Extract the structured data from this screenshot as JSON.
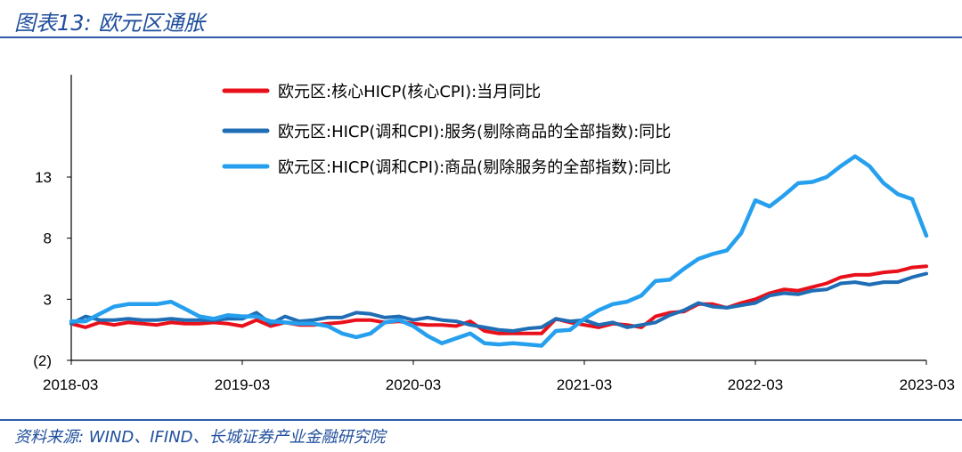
{
  "header": {
    "title": "图表13:  欧元区通胀"
  },
  "footer": {
    "source": "资料来源:  WIND、IFIND、长城证券产业金融研究院"
  },
  "chart_data": {
    "type": "line",
    "title": "",
    "xlabel": "",
    "ylabel": "",
    "ylim": [
      -2,
      16
    ],
    "yticks": [
      -2,
      3,
      8,
      13
    ],
    "ytick_labels": [
      "(2)",
      "3",
      "8",
      "13"
    ],
    "xticks": [
      "2018-03",
      "2019-03",
      "2020-03",
      "2021-03",
      "2022-03",
      "2023-03"
    ],
    "grid": false,
    "legend_position": "top-center",
    "x": [
      "2018-03",
      "2018-04",
      "2018-05",
      "2018-06",
      "2018-07",
      "2018-08",
      "2018-09",
      "2018-10",
      "2018-11",
      "2018-12",
      "2019-01",
      "2019-02",
      "2019-03",
      "2019-04",
      "2019-05",
      "2019-06",
      "2019-07",
      "2019-08",
      "2019-09",
      "2019-10",
      "2019-11",
      "2019-12",
      "2020-01",
      "2020-02",
      "2020-03",
      "2020-04",
      "2020-05",
      "2020-06",
      "2020-07",
      "2020-08",
      "2020-09",
      "2020-10",
      "2020-11",
      "2020-12",
      "2021-01",
      "2021-02",
      "2021-03",
      "2021-04",
      "2021-05",
      "2021-06",
      "2021-07",
      "2021-08",
      "2021-09",
      "2021-10",
      "2021-11",
      "2021-12",
      "2022-01",
      "2022-02",
      "2022-03",
      "2022-04",
      "2022-05",
      "2022-06",
      "2022-07",
      "2022-08",
      "2022-09",
      "2022-10",
      "2022-11",
      "2022-12",
      "2023-01",
      "2023-02",
      "2023-03"
    ],
    "series": [
      {
        "name": "欧元区:核心HICP(核心CPI):当月同比",
        "color": "#e8101a",
        "values": [
          1.0,
          0.7,
          1.1,
          0.9,
          1.1,
          1.0,
          0.9,
          1.1,
          1.0,
          1.0,
          1.1,
          1.0,
          0.8,
          1.3,
          0.8,
          1.1,
          0.9,
          0.9,
          1.0,
          1.1,
          1.3,
          1.3,
          1.1,
          1.2,
          1.0,
          0.9,
          0.9,
          0.8,
          1.2,
          0.4,
          0.2,
          0.2,
          0.2,
          0.2,
          1.4,
          1.1,
          0.9,
          0.7,
          1.0,
          0.9,
          0.7,
          1.6,
          1.9,
          2.0,
          2.6,
          2.6,
          2.3,
          2.7,
          3.0,
          3.5,
          3.8,
          3.7,
          4.0,
          4.3,
          4.8,
          5.0,
          5.0,
          5.2,
          5.3,
          5.6,
          5.7
        ]
      },
      {
        "name": "欧元区:HICP(调和CPI):服务(剔除商品的全部指数):同比",
        "color": "#1f6db5",
        "values": [
          1.0,
          1.6,
          1.3,
          1.3,
          1.4,
          1.3,
          1.3,
          1.4,
          1.3,
          1.3,
          1.3,
          1.4,
          1.4,
          1.9,
          1.0,
          1.6,
          1.2,
          1.3,
          1.5,
          1.5,
          1.9,
          1.8,
          1.5,
          1.6,
          1.3,
          1.5,
          1.3,
          1.2,
          0.9,
          0.7,
          0.5,
          0.4,
          0.6,
          0.7,
          1.4,
          1.2,
          1.3,
          0.9,
          1.1,
          0.7,
          0.9,
          1.1,
          1.7,
          2.1,
          2.7,
          2.4,
          2.3,
          2.5,
          2.7,
          3.3,
          3.5,
          3.4,
          3.7,
          3.8,
          4.3,
          4.4,
          4.2,
          4.4,
          4.4,
          4.8,
          5.1
        ]
      },
      {
        "name": "欧元区:HICP(调和CPI):商品(剔除服务的全部指数):同比",
        "color": "#26a0ee",
        "values": [
          1.2,
          1.2,
          1.8,
          2.4,
          2.6,
          2.6,
          2.6,
          2.8,
          2.2,
          1.6,
          1.4,
          1.7,
          1.6,
          1.6,
          1.2,
          1.1,
          1.0,
          1.0,
          0.8,
          0.2,
          -0.1,
          0.2,
          1.1,
          1.3,
          0.8,
          0.0,
          -0.6,
          -0.2,
          0.2,
          -0.6,
          -0.7,
          -0.6,
          -0.7,
          -0.8,
          0.4,
          0.5,
          1.4,
          2.1,
          2.6,
          2.8,
          3.3,
          4.5,
          4.6,
          5.5,
          6.3,
          6.7,
          7.0,
          8.4,
          11.1,
          10.6,
          11.5,
          12.5,
          12.6,
          13.0,
          13.9,
          14.7,
          13.9,
          12.5,
          11.6,
          11.2,
          8.2
        ]
      }
    ]
  }
}
